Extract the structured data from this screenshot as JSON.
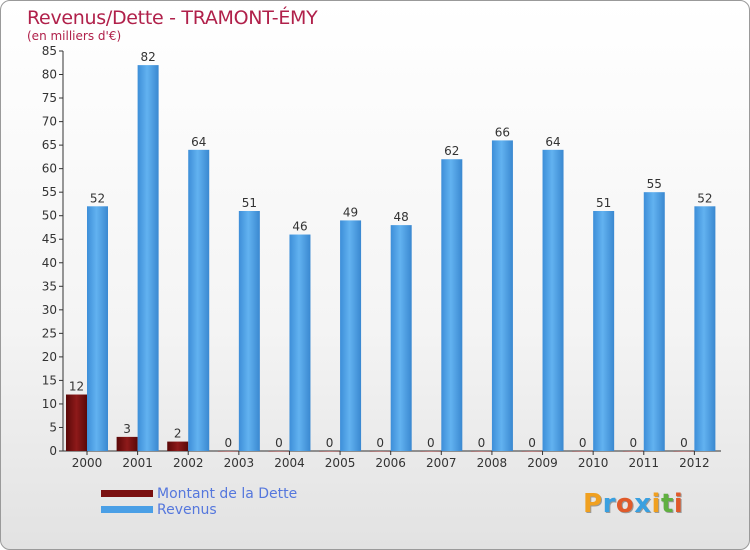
{
  "chart_data": {
    "type": "bar",
    "title": "Revenus/Dette - TRAMONT-ÉMY",
    "subtitle": "(en milliers d'€)",
    "categories": [
      "2000",
      "2001",
      "2002",
      "2003",
      "2004",
      "2005",
      "2006",
      "2007",
      "2008",
      "2009",
      "2010",
      "2011",
      "2012"
    ],
    "series": [
      {
        "name": "Montant de la Dette",
        "color": "#7a0f0f",
        "values": [
          12,
          3,
          2,
          0,
          0,
          0,
          0,
          0,
          0,
          0,
          0,
          0,
          0
        ]
      },
      {
        "name": "Revenus",
        "color": "#4a9fe6",
        "values": [
          52,
          82,
          64,
          51,
          46,
          49,
          48,
          62,
          66,
          64,
          51,
          55,
          52
        ]
      }
    ],
    "ylim": [
      0,
      85
    ],
    "yticks": [
      0,
      5,
      10,
      15,
      20,
      25,
      30,
      35,
      40,
      45,
      50,
      55,
      60,
      65,
      70,
      75,
      80,
      85
    ],
    "grid": false,
    "legend": "bottom-left"
  },
  "logo": {
    "letters": [
      "P",
      "r",
      "o",
      "x",
      "i",
      "t",
      "i"
    ],
    "colors": [
      "#f0a020",
      "#3aa0e0",
      "#e05a2a",
      "#3aa0e0",
      "#f0a020",
      "#60b040",
      "#e05a2a"
    ]
  }
}
